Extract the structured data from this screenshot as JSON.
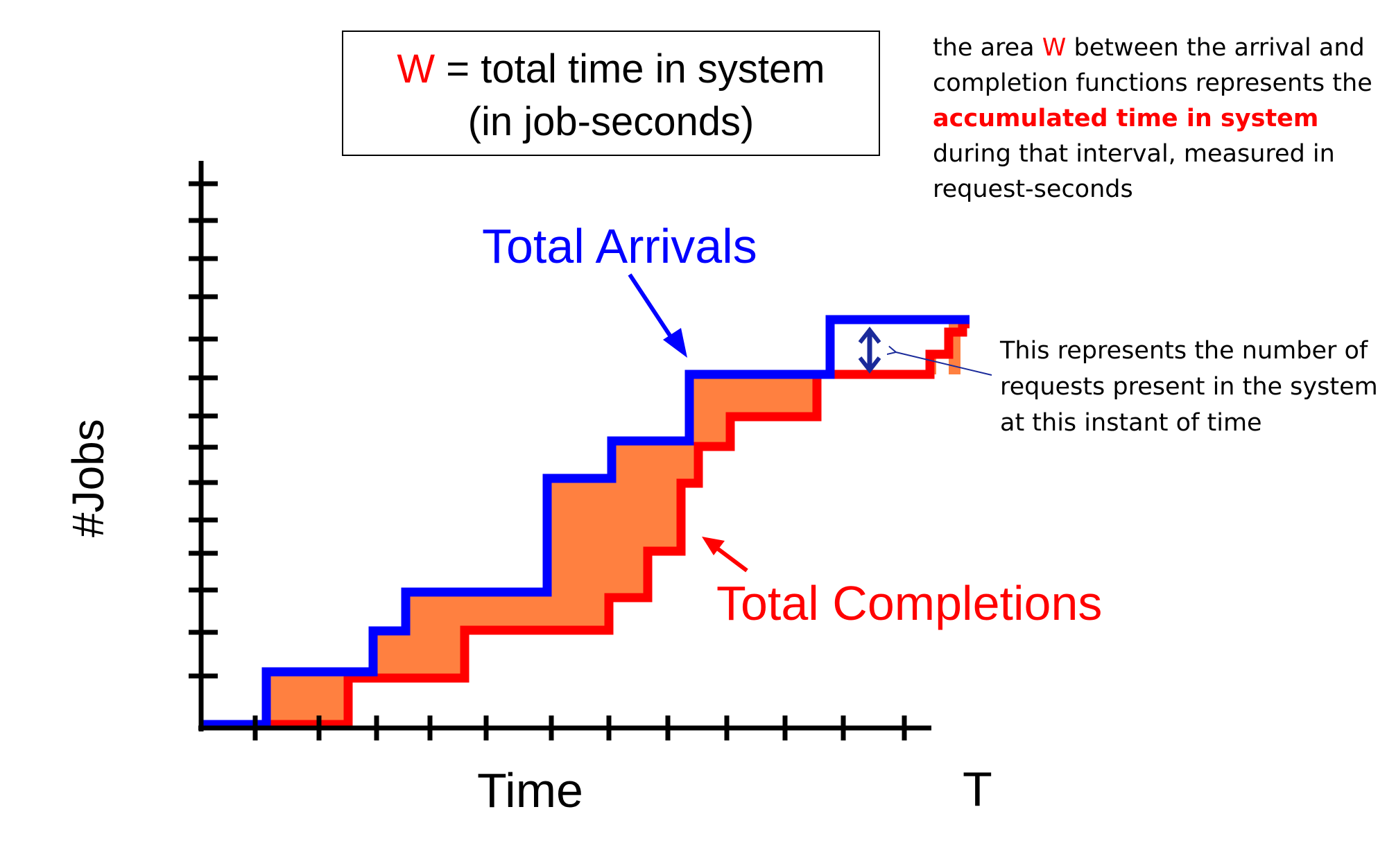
{
  "title_box": {
    "symbol": "W",
    "line1_rest": " = total time in system",
    "line2": "(in job-seconds)"
  },
  "note_top": {
    "part1": "the area ",
    "symbol": "W",
    "part2": " between the arrival and  completion functions represents the ",
    "highlight": "accumulated time in system",
    "part3": " during that interval, measured in request-seconds"
  },
  "note_right": "This represents the number of requests present in the system at this instant of time",
  "labels": {
    "arrivals": "Total Arrivals",
    "completions": "Total Completions",
    "x_axis": "Time",
    "x_end": "T",
    "y_axis": "#Jobs"
  },
  "colors": {
    "arrivals": "#0000ff",
    "completions": "#ff0000",
    "area_fill": "#ff8040",
    "axis": "#000000"
  }
}
